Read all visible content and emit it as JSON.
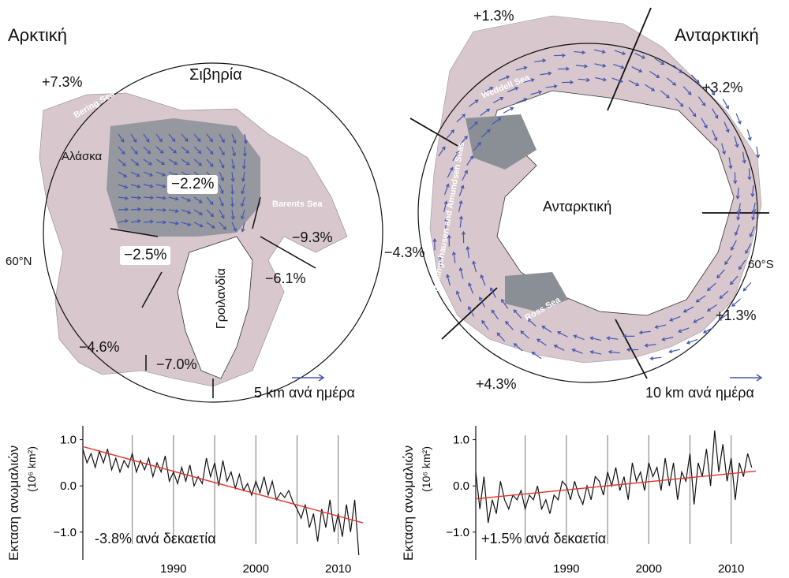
{
  "colors": {
    "ocean": "#ffffff",
    "ice": "#d8c7cc",
    "land_shade": "#8a8f96",
    "arrow": "#4457b0",
    "trend": "#e0342a",
    "line": "#111111"
  },
  "arctic": {
    "title": "Αρκτική",
    "siberia": "Σιβηρία",
    "alaska": "Αλάσκα",
    "greenland": "Γροιλανδία",
    "lat": "60°N",
    "bering_sea": "Bering Sea",
    "barents_sea": "Barents Sea",
    "regions": {
      "bering": "+7.3%",
      "central": "−2.2%",
      "barents": "−9.3%",
      "canadian": "−2.5%",
      "greenland": "−6.1%",
      "hudson": "−4.6%",
      "baffin": "−7.0%"
    },
    "scale": "5 km  ανά ημέρα"
  },
  "antarctic": {
    "title": "Ανταρκτική",
    "continent": "Ανταρκτική",
    "lat": "60°S",
    "weddell_sea": "Weddell Sea",
    "bellingshausen": "Bellingshausen and Amundsen Seas",
    "ross_sea": "Ross Sea",
    "regions": {
      "weddell": "+1.3%",
      "indian": "+3.2%",
      "pacific": "+1.3%",
      "ross": "+4.3%",
      "bellingshausen": "−4.3%"
    },
    "scale": "10 km ανά ημέρα"
  },
  "chart_data": [
    {
      "type": "line",
      "ylabel": "Εκταση ανωμαλιών",
      "yunit": "(10⁶ km²)",
      "annotation": "-3.8% ανά δεκαετία",
      "ylim": [
        -1.6,
        1.3
      ],
      "xlim": [
        1979,
        2013
      ],
      "yticks": [
        "1.0",
        "0.0",
        "−1.0"
      ],
      "ytick_values": [
        1.0,
        0.0,
        -1.0
      ],
      "xticks": [
        "1990",
        "2000",
        "2010"
      ],
      "xtick_values": [
        1990,
        2000,
        2010
      ],
      "vlines": [
        1985,
        1990,
        1995,
        2000,
        2005,
        2010
      ],
      "series": [
        {
          "x": [
            1979,
            1979.5,
            1980,
            1980.5,
            1981,
            1981.5,
            1982,
            1982.5,
            1983,
            1983.5,
            1984,
            1984.5,
            1985,
            1985.5,
            1986,
            1986.5,
            1987,
            1987.5,
            1988,
            1988.5,
            1989,
            1989.5,
            1990,
            1990.5,
            1991,
            1991.5,
            1992,
            1992.5,
            1993,
            1993.5,
            1994,
            1994.5,
            1995,
            1995.5,
            1996,
            1996.5,
            1997,
            1997.5,
            1998,
            1998.5,
            1999,
            1999.5,
            2000,
            2000.5,
            2001,
            2001.5,
            2002,
            2002.5,
            2003,
            2003.5,
            2004,
            2004.5,
            2005,
            2005.5,
            2006,
            2006.5,
            2007,
            2007.5,
            2008,
            2008.5,
            2009,
            2009.5,
            2010,
            2010.5,
            2011,
            2011.5,
            2012,
            2012.5
          ],
          "values": [
            0.8,
            0.5,
            0.7,
            0.4,
            0.75,
            0.5,
            0.8,
            0.35,
            0.6,
            0.3,
            0.55,
            0.4,
            0.7,
            0.3,
            0.55,
            0.35,
            0.6,
            0.2,
            0.5,
            0.3,
            0.65,
            0.1,
            0.3,
            0.05,
            0.4,
            0.1,
            0.45,
            0.0,
            0.2,
            0.05,
            0.6,
            0.2,
            0.5,
            0.0,
            0.55,
            0.1,
            0.3,
            -0.05,
            0.25,
            -0.1,
            0.05,
            -0.2,
            0.1,
            -0.15,
            0.2,
            -0.2,
            0.1,
            -0.3,
            -0.15,
            -0.25,
            -0.1,
            -0.35,
            -0.5,
            -0.7,
            -0.4,
            -0.9,
            -0.6,
            -1.2,
            -0.5,
            -0.9,
            -0.3,
            -1.0,
            -0.6,
            -1.1,
            -0.4,
            -1.0,
            -0.3,
            -1.5
          ]
        },
        {
          "name": "trend",
          "x": [
            1979,
            2013
          ],
          "values": [
            0.85,
            -0.8
          ]
        }
      ]
    },
    {
      "type": "line",
      "ylabel": "Εκταση ανωμαλιών",
      "yunit": "(10⁶ km²)",
      "annotation": "+1.5% ανά δεκαετία",
      "ylim": [
        -1.6,
        1.3
      ],
      "xlim": [
        1979,
        2013
      ],
      "yticks": [
        "1.0",
        "0.0",
        "−1.0"
      ],
      "ytick_values": [
        1.0,
        0.0,
        -1.0
      ],
      "xticks": [
        "1990",
        "2000",
        "2010"
      ],
      "xtick_values": [
        1990,
        2000,
        2010
      ],
      "vlines": [
        1985,
        1990,
        1995,
        2000,
        2005,
        2010
      ],
      "series": [
        {
          "x": [
            1979,
            1979.5,
            1980,
            1980.5,
            1981,
            1981.5,
            1982,
            1982.5,
            1983,
            1983.5,
            1984,
            1984.5,
            1985,
            1985.5,
            1986,
            1986.5,
            1987,
            1987.5,
            1988,
            1988.5,
            1989,
            1989.5,
            1990,
            1990.5,
            1991,
            1991.5,
            1992,
            1992.5,
            1993,
            1993.5,
            1994,
            1994.5,
            1995,
            1995.5,
            1996,
            1996.5,
            1997,
            1997.5,
            1998,
            1998.5,
            1999,
            1999.5,
            2000,
            2000.5,
            2001,
            2001.5,
            2002,
            2002.5,
            2003,
            2003.5,
            2004,
            2004.5,
            2005,
            2005.5,
            2006,
            2006.5,
            2007,
            2007.5,
            2008,
            2008.5,
            2009,
            2009.5,
            2010,
            2010.5,
            2011,
            2011.5,
            2012,
            2012.5
          ],
          "values": [
            0.3,
            -0.5,
            0.2,
            -0.8,
            -0.3,
            -0.6,
            0.1,
            -0.3,
            -0.5,
            -0.2,
            -0.3,
            -0.1,
            -0.5,
            -0.2,
            -0.3,
            0.0,
            -0.5,
            -0.3,
            -0.6,
            -0.2,
            -0.3,
            0.1,
            0.0,
            -0.3,
            0.1,
            -0.2,
            -0.4,
            0.0,
            -0.3,
            0.2,
            0.1,
            -0.2,
            0.3,
            0.0,
            0.4,
            -0.1,
            0.2,
            -0.3,
            0.5,
            0.1,
            0.3,
            -0.1,
            0.5,
            0.2,
            0.4,
            -0.1,
            0.6,
            0.0,
            0.5,
            -0.3,
            0.3,
            0.1,
            0.7,
            -0.4,
            0.5,
            0.2,
            0.8,
            0.0,
            1.2,
            0.3,
            0.9,
            0.1,
            0.6,
            -0.3,
            0.5,
            0.2,
            0.7,
            0.4
          ]
        },
        {
          "name": "trend",
          "x": [
            1979,
            2013
          ],
          "values": [
            -0.28,
            0.32
          ]
        }
      ]
    }
  ]
}
